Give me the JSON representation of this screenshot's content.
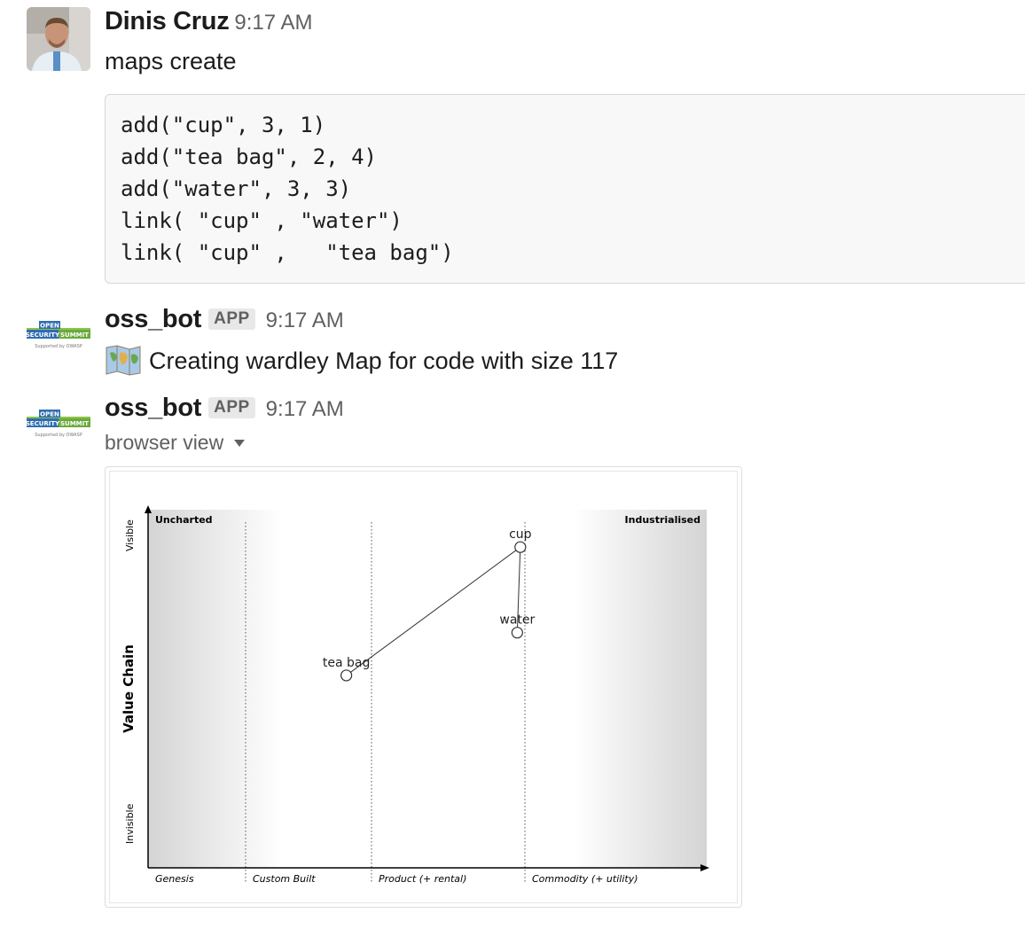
{
  "messages": [
    {
      "author": "Dinis Cruz",
      "time": "9:17 AM",
      "text": "maps create",
      "code_lines": [
        "add(\"cup\", 3, 1)",
        "add(\"tea bag\", 2, 4)",
        "add(\"water\", 3, 3)",
        "link( \"cup\" , \"water\")",
        "link( \"cup\" ,   \"tea bag\")"
      ]
    },
    {
      "author": "oss_bot",
      "badge": "APP",
      "time": "9:17 AM",
      "text": "Creating wardley Map for code with size 117",
      "emoji_icon": "world-map-icon"
    },
    {
      "author": "oss_bot",
      "badge": "APP",
      "time": "9:17 AM",
      "subtitle": "browser view"
    }
  ],
  "bot_logo": {
    "line1": "OPEN",
    "line2": "SECURITY",
    "line3": "SUMMIT",
    "line4": "Supported by OWASP"
  },
  "chart_data": {
    "type": "scatter",
    "title": "",
    "ylabel": "Value Chain",
    "y_axis_top_label": "Visible",
    "y_axis_bottom_label": "Invisible",
    "corner_left_label": "Uncharted",
    "corner_right_label": "Industrialised",
    "stages": [
      "Genesis",
      "Custom Built",
      "Product (+ rental)",
      "Commodity (+ utility)"
    ],
    "xlim": [
      0,
      4
    ],
    "ylim": [
      0,
      5
    ],
    "nodes": [
      {
        "label": "cup",
        "x": 2.97,
        "y": 4.5
      },
      {
        "label": "tea bag",
        "x": 1.8,
        "y": 2.7
      },
      {
        "label": "water",
        "x": 2.95,
        "y": 3.3
      }
    ],
    "links": [
      [
        "cup",
        "water"
      ],
      [
        "cup",
        "tea bag"
      ]
    ],
    "grid": false
  }
}
